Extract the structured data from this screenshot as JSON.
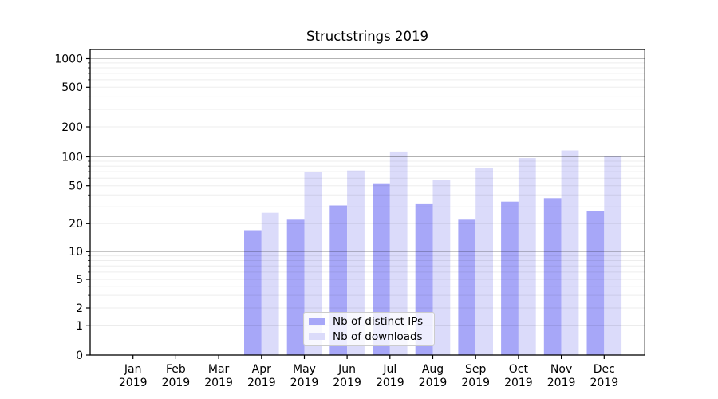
{
  "figure": {
    "title": "Structstrings 2019"
  },
  "chart_data": {
    "type": "bar",
    "title": "Structstrings 2019",
    "categories": [
      "Jan 2019",
      "Feb 2019",
      "Mar 2019",
      "Apr 2019",
      "May 2019",
      "Jun 2019",
      "Jul 2019",
      "Aug 2019",
      "Sep 2019",
      "Oct 2019",
      "Nov 2019",
      "Dec 2019"
    ],
    "series": [
      {
        "name": "Nb of distinct IPs",
        "color": "#a7a7f8",
        "values": [
          0,
          0,
          0,
          17,
          22,
          31,
          53,
          32,
          22,
          34,
          37,
          27
        ]
      },
      {
        "name": "Nb of downloads",
        "color": "#dbdbfa",
        "values": [
          0,
          0,
          0,
          26,
          70,
          72,
          113,
          57,
          77,
          97,
          116,
          101
        ]
      }
    ],
    "yaxis": {
      "scale": "symlog",
      "ticks": [
        0,
        1,
        2,
        5,
        10,
        20,
        50,
        100,
        200,
        500,
        1000
      ],
      "major_grid_values": [
        1,
        10,
        100,
        1000
      ],
      "minor_grid_values": [
        2,
        3,
        4,
        5,
        6,
        7,
        8,
        9,
        20,
        30,
        40,
        50,
        60,
        70,
        80,
        90,
        200,
        300,
        400,
        500,
        600,
        700,
        800,
        900
      ],
      "range": [
        0,
        1000
      ]
    },
    "grid": {
      "major": true,
      "minor": true
    },
    "legend": {
      "position": "lower center",
      "entries": [
        {
          "label": "Nb of distinct IPs",
          "color": "#a7a7f8"
        },
        {
          "label": "Nb of downloads",
          "color": "#dbdbfa"
        }
      ]
    },
    "colors": {
      "major_grid": "rgba(0,0,0,0.30)",
      "minor_grid": "rgba(0,0,0,0.07)",
      "spine": "#000000",
      "background": "#ffffff"
    }
  }
}
